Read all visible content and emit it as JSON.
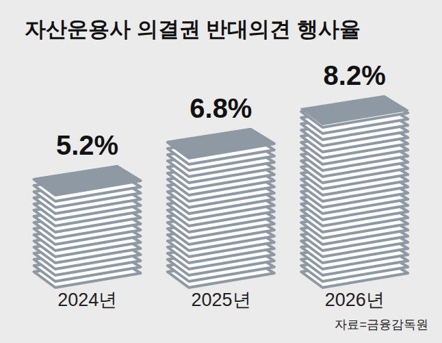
{
  "chart_data": {
    "type": "bar",
    "title": "자산운용사 의결권 반대의견 행사율",
    "categories": [
      "2024년",
      "2025년",
      "2026년"
    ],
    "values": [
      5.2,
      6.8,
      8.2
    ],
    "value_labels": [
      "5.2%",
      "6.8%",
      "8.2%"
    ],
    "color": "#8e99a4",
    "data_labels": true,
    "tick_labels": "x",
    "annotations": [
      "자료=금융감독원"
    ]
  }
}
